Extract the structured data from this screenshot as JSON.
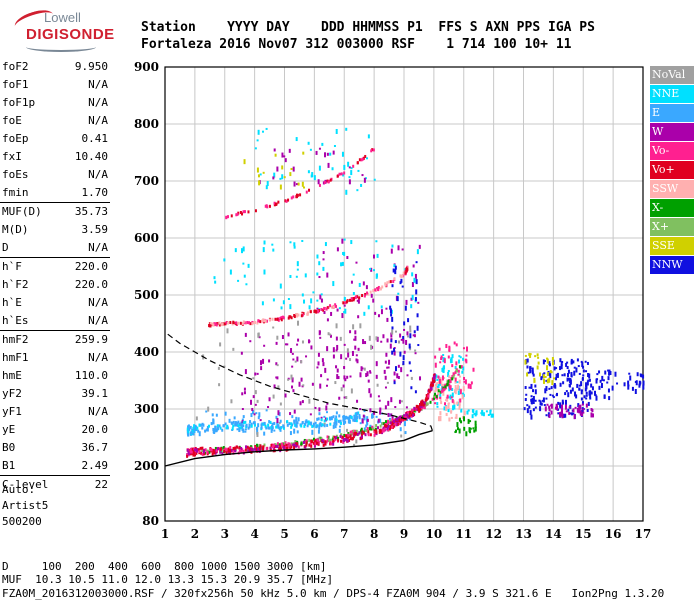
{
  "logo": {
    "line1": "Lowell",
    "line2": "DIGISONDE"
  },
  "header": {
    "labels": "Station    YYYY DAY    DDD HHMMSS P1  FFS S AXN PPS IGA PS",
    "values": "Fortaleza 2016 Nov07 312 003000 RSF    1 714 100 10+ 11"
  },
  "params": [
    [
      {
        "k": "foF2",
        "v": "9.950"
      },
      {
        "k": "foF1",
        "v": "N/A"
      },
      {
        "k": "foF1p",
        "v": "N/A"
      },
      {
        "k": "foE",
        "v": "N/A"
      },
      {
        "k": "foEp",
        "v": "0.41"
      },
      {
        "k": "fxI",
        "v": "10.40"
      },
      {
        "k": "foEs",
        "v": "N/A"
      },
      {
        "k": "fmin",
        "v": "1.70"
      }
    ],
    [
      {
        "k": "MUF(D)",
        "v": "35.73"
      },
      {
        "k": "M(D)",
        "v": "3.59"
      },
      {
        "k": "D",
        "v": "N/A"
      }
    ],
    [
      {
        "k": "h`F",
        "v": "220.0"
      },
      {
        "k": "h`F2",
        "v": "220.0"
      },
      {
        "k": "h`E",
        "v": "N/A"
      },
      {
        "k": "h`Es",
        "v": "N/A"
      }
    ],
    [
      {
        "k": "hmF2",
        "v": "259.9"
      },
      {
        "k": "hmF1",
        "v": "N/A"
      },
      {
        "k": "hmE",
        "v": "110.0"
      },
      {
        "k": "yF2",
        "v": "39.1"
      },
      {
        "k": "yF1",
        "v": "N/A"
      },
      {
        "k": "yE",
        "v": "20.0"
      },
      {
        "k": "B0",
        "v": "36.7"
      },
      {
        "k": "B1",
        "v": "2.49"
      }
    ],
    [
      {
        "k": "C-level",
        "v": "22"
      }
    ]
  ],
  "artist": {
    "line1": "Auto:",
    "line2": "Artist5",
    "line3": "500200"
  },
  "chart_data": {
    "type": "scatter",
    "x_ticks": [
      "1",
      "2",
      "3",
      "4",
      "5",
      "6",
      "7",
      "8",
      "9",
      "10",
      "11",
      "12",
      "13",
      "14",
      "15",
      "16",
      "17"
    ],
    "y_ticks": [
      "80",
      "200",
      "300",
      "400",
      "500",
      "600",
      "700",
      "800",
      "900"
    ],
    "y_values": [
      80,
      200,
      300,
      400,
      500,
      600,
      700,
      800,
      900
    ],
    "xlim": [
      1,
      17
    ],
    "ylim": [
      80,
      900
    ],
    "legend": [
      {
        "name": "NoVal",
        "color": "#a0a0a0"
      },
      {
        "name": "NNE",
        "color": "#00e0ff"
      },
      {
        "name": "E",
        "color": "#3aa8ff"
      },
      {
        "name": "W",
        "color": "#aa00aa"
      },
      {
        "name": "Vo-",
        "color": "#ff2090"
      },
      {
        "name": "Vo+",
        "color": "#e00020"
      },
      {
        "name": "SSW",
        "color": "#ffb0b0"
      },
      {
        "name": "X-",
        "color": "#00a000"
      },
      {
        "name": "X+",
        "color": "#80c060"
      },
      {
        "name": "SSE",
        "color": "#d0d000"
      },
      {
        "name": "NNW",
        "color": "#1010e0"
      }
    ],
    "trace_F2_O": [
      [
        1.7,
        225
      ],
      [
        2,
        228
      ],
      [
        3,
        230
      ],
      [
        4,
        232
      ],
      [
        5,
        236
      ],
      [
        6,
        242
      ],
      [
        7,
        250
      ],
      [
        8,
        262
      ],
      [
        8.6,
        275
      ],
      [
        9,
        288
      ],
      [
        9.5,
        305
      ],
      [
        9.8,
        330
      ],
      [
        10,
        360
      ]
    ],
    "trace_F2_X": [
      [
        2.2,
        228
      ],
      [
        3,
        232
      ],
      [
        4,
        235
      ],
      [
        5,
        240
      ],
      [
        6,
        246
      ],
      [
        7,
        256
      ],
      [
        8,
        270
      ],
      [
        9,
        290
      ],
      [
        9.7,
        310
      ],
      [
        10.4,
        345
      ],
      [
        10.9,
        380
      ]
    ],
    "trace_E_layer": [
      [
        1.7,
        260
      ],
      [
        2,
        268
      ],
      [
        3,
        272
      ],
      [
        4,
        274
      ],
      [
        5,
        275
      ],
      [
        6,
        278
      ],
      [
        7,
        285
      ],
      [
        7.5,
        290
      ]
    ],
    "trace_2F": [
      [
        2.4,
        450
      ],
      [
        3,
        452
      ],
      [
        4,
        455
      ],
      [
        5,
        462
      ],
      [
        6,
        474
      ],
      [
        7,
        490
      ],
      [
        8,
        510
      ],
      [
        9,
        540
      ],
      [
        9.1,
        552
      ]
    ],
    "trace_3F": [
      [
        3,
        640
      ],
      [
        4,
        652
      ],
      [
        5,
        668
      ],
      [
        6,
        690
      ],
      [
        7,
        718
      ],
      [
        8,
        760
      ]
    ],
    "profile_curve": [
      [
        1,
        200
      ],
      [
        2,
        213
      ],
      [
        3,
        220
      ],
      [
        4,
        225
      ],
      [
        5,
        228
      ],
      [
        6,
        230
      ],
      [
        7,
        233
      ],
      [
        8,
        237
      ],
      [
        9,
        245
      ],
      [
        9.5,
        255
      ],
      [
        9.95,
        262
      ],
      [
        9.9,
        270
      ],
      [
        9.5,
        277
      ],
      [
        8.5,
        290
      ],
      [
        7.5,
        300
      ],
      [
        6.5,
        310
      ],
      [
        5.5,
        325
      ],
      [
        4.5,
        340
      ],
      [
        3.5,
        360
      ],
      [
        2.5,
        385
      ],
      [
        1.5,
        415
      ],
      [
        1,
        435
      ]
    ],
    "blobs": [
      {
        "x": [
          1.7,
          9.2
        ],
        "y": [
          260,
          300
        ],
        "c": "#3aa8ff",
        "n": 120
      },
      {
        "x": [
          3.5,
          9.0
        ],
        "y": [
          280,
          440
        ],
        "c": "#aa00aa",
        "n": 140
      },
      {
        "x": [
          6.0,
          9.6
        ],
        "y": [
          300,
          600
        ],
        "c": "#aa00aa",
        "n": 90
      },
      {
        "x": [
          10.0,
          11.0
        ],
        "y": [
          300,
          400
        ],
        "c": "#00e0ff",
        "n": 60
      },
      {
        "x": [
          10.0,
          11.0
        ],
        "y": [
          285,
          360
        ],
        "c": "#ffb0b0",
        "n": 60
      },
      {
        "x": [
          10.0,
          11.3
        ],
        "y": [
          310,
          420
        ],
        "c": "#ff2090",
        "n": 50
      },
      {
        "x": [
          13.0,
          15.2
        ],
        "y": [
          290,
          390
        ],
        "c": "#1010e0",
        "n": 170
      },
      {
        "x": [
          15.0,
          16.1
        ],
        "y": [
          320,
          370
        ],
        "c": "#1010e0",
        "n": 40
      },
      {
        "x": [
          13.0,
          14.0
        ],
        "y": [
          350,
          400
        ],
        "c": "#d0d000",
        "n": 30
      },
      {
        "x": [
          13.7,
          15.3
        ],
        "y": [
          290,
          310
        ],
        "c": "#aa00aa",
        "n": 40
      },
      {
        "x": [
          16.3,
          17.0
        ],
        "y": [
          335,
          365
        ],
        "c": "#1010e0",
        "n": 20
      },
      {
        "x": [
          11.0,
          12.0
        ],
        "y": [
          290,
          300
        ],
        "c": "#00e0ff",
        "n": 20
      },
      {
        "x": [
          2.0,
          9.5
        ],
        "y": [
          235,
          460
        ],
        "c": "#a0a0a0",
        "n": 70
      },
      {
        "x": [
          2.5,
          9.5
        ],
        "y": [
          470,
          600
        ],
        "c": "#00e0ff",
        "n": 80
      },
      {
        "x": [
          4.0,
          8.0
        ],
        "y": [
          680,
          800
        ],
        "c": "#00e0ff",
        "n": 40
      },
      {
        "x": [
          4.0,
          8.0
        ],
        "y": [
          690,
          760
        ],
        "c": "#aa00aa",
        "n": 25
      },
      {
        "x": [
          3.5,
          7.0
        ],
        "y": [
          690,
          760
        ],
        "c": "#d0d000",
        "n": 15
      },
      {
        "x": [
          8.5,
          9.5
        ],
        "y": [
          320,
          560
        ],
        "c": "#1010e0",
        "n": 40
      },
      {
        "x": [
          10.6,
          11.4
        ],
        "y": [
          260,
          290
        ],
        "c": "#00a000",
        "n": 20
      }
    ]
  },
  "footer": {
    "line1": "D     100  200  400  600  800 1000 1500 3000 [km]",
    "line2": "MUF  10.3 10.5 11.0 12.0 13.3 15.3 20.9 35.7 [MHz]",
    "line3": "FZA0M_2016312003000.RSF / 320fx256h 50 kHz 5.0 km / DPS-4 FZA0M 904 / 3.9 S 321.6 E   Ion2Png 1.3.20"
  }
}
